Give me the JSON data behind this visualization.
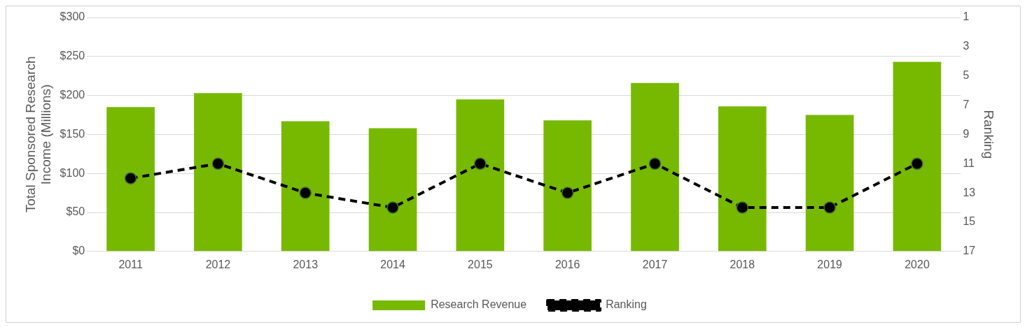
{
  "chart_data": {
    "type": "bar",
    "ylabel": "Total Sponsored Research Income (Millions)",
    "y2label": "Ranking",
    "categories": [
      "2011",
      "2012",
      "2013",
      "2014",
      "2015",
      "2016",
      "2017",
      "2018",
      "2019",
      "2020"
    ],
    "series": [
      {
        "name": "Research Revenue",
        "color": "#76b900",
        "values": [
          185,
          203,
          167,
          158,
          195,
          168,
          216,
          186,
          175,
          243
        ]
      },
      {
        "name": "Ranking",
        "type": "line",
        "axis": "y2",
        "color": "#000000",
        "line_style": "dashed",
        "marker": "circle",
        "values": [
          12,
          11,
          13,
          14,
          11,
          13,
          11,
          14,
          14,
          11
        ]
      }
    ],
    "ylim": [
      0,
      300
    ],
    "yticks": [
      {
        "value": 0,
        "label": "$0"
      },
      {
        "value": 50,
        "label": "$50"
      },
      {
        "value": 100,
        "label": "$100"
      },
      {
        "value": 150,
        "label": "$150"
      },
      {
        "value": 200,
        "label": "$200"
      },
      {
        "value": 250,
        "label": "$250"
      },
      {
        "value": 300,
        "label": "$300"
      }
    ],
    "y2lim": [
      17,
      1
    ],
    "y2ticks": [
      1,
      3,
      5,
      7,
      9,
      11,
      13,
      15,
      17
    ],
    "grid": "y",
    "legend": "bottom"
  }
}
